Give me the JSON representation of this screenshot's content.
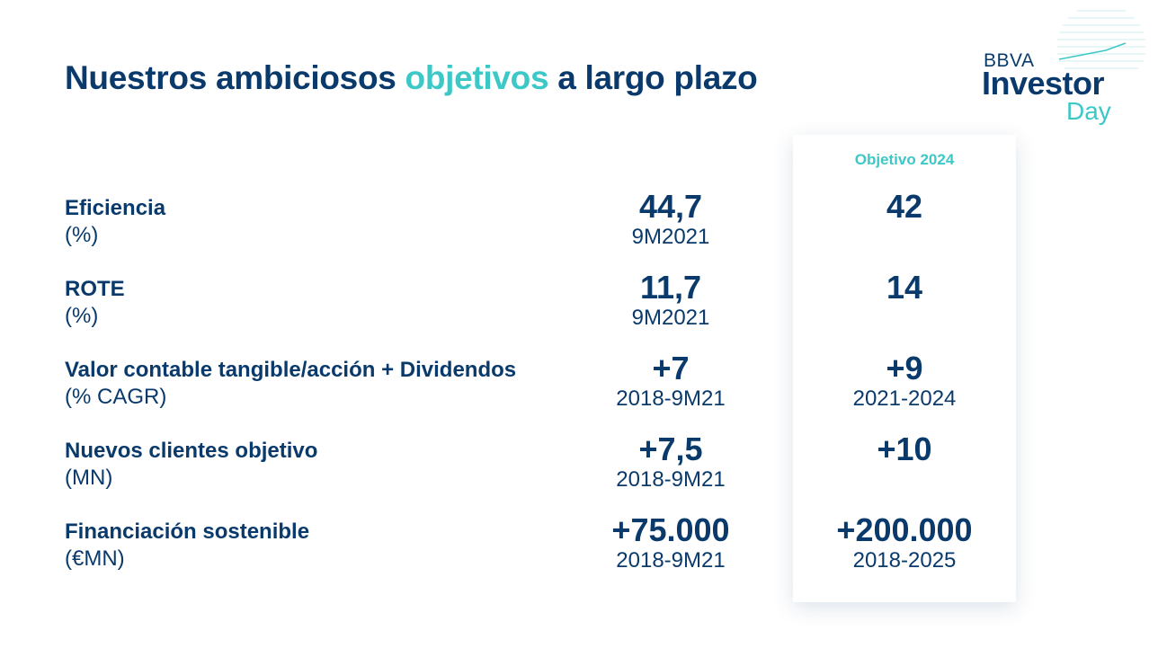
{
  "title": {
    "part1": "Nuestros ambiciosos ",
    "accent": "objetivos",
    "part2": " a largo plazo"
  },
  "logo": {
    "brand": "BBVA",
    "line1": "Investor",
    "line2": "Day"
  },
  "target_header": "Objetivo 2024",
  "colors": {
    "primary": "#0a3a6b",
    "accent": "#3cc8c6"
  },
  "rows": [
    {
      "label": "Eficiencia",
      "unit": "(%)",
      "current_value": "44,7",
      "current_period": "9M2021",
      "target_value": "42",
      "target_period": ""
    },
    {
      "label": "ROTE",
      "unit": "(%)",
      "current_value": "11,7",
      "current_period": "9M2021",
      "target_value": "14",
      "target_period": ""
    },
    {
      "label": "Valor contable tangible/acción + Dividendos",
      "unit": "(% CAGR)",
      "current_value": "+7",
      "current_period": "2018-9M21",
      "target_value": "+9",
      "target_period": "2021-2024"
    },
    {
      "label": "Nuevos clientes objetivo",
      "unit": "(MN)",
      "current_value": "+7,5",
      "current_period": "2018-9M21",
      "target_value": "+10",
      "target_period": ""
    },
    {
      "label": "Financiación sostenible",
      "unit": "(€MN)",
      "current_value": "+75.000",
      "current_period": "2018-9M21",
      "target_value": "+200.000",
      "target_period": "2018-2025"
    }
  ]
}
